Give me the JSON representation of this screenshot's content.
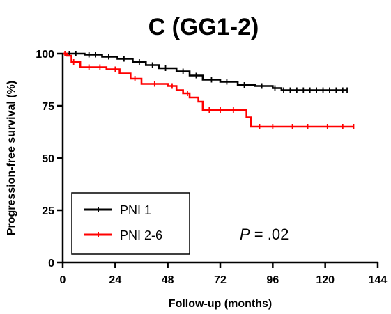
{
  "chart_data": {
    "type": "line",
    "subtype": "kaplan-meier",
    "title": "C (GG1-2)",
    "xlabel": "Follow-up (months)",
    "ylabel": "Progression-free survival (%)",
    "xlim": [
      0,
      144
    ],
    "ylim": [
      0,
      100
    ],
    "x_ticks": [
      0,
      24,
      48,
      72,
      96,
      120,
      144
    ],
    "y_ticks": [
      0,
      25,
      50,
      75,
      100
    ],
    "x_tick_labels": [
      "0",
      "24",
      "48",
      "72",
      "96",
      "120",
      "144"
    ],
    "y_tick_labels": [
      "0",
      "25",
      "50",
      "75",
      "100"
    ],
    "grid": false,
    "legend_position": "bottom-left",
    "annotation": {
      "italic": "P",
      "rest": " = .02"
    },
    "series": [
      {
        "name": "PNI 1",
        "color": "#000000",
        "steps": [
          [
            0,
            100
          ],
          [
            10,
            99.5
          ],
          [
            18,
            98.5
          ],
          [
            25,
            97.5
          ],
          [
            32,
            96
          ],
          [
            38,
            94.5
          ],
          [
            44,
            93
          ],
          [
            52,
            91.5
          ],
          [
            58,
            89.5
          ],
          [
            64,
            87.5
          ],
          [
            72,
            86.5
          ],
          [
            80,
            85
          ],
          [
            88,
            84.5
          ],
          [
            96,
            83.5
          ],
          [
            100,
            82.5
          ],
          [
            130,
            82.5
          ]
        ],
        "censor_x": [
          3,
          6,
          12,
          15,
          21,
          28,
          35,
          41,
          47,
          55,
          61,
          68,
          75,
          83,
          91,
          97,
          101,
          104,
          107,
          110,
          113,
          116,
          119,
          122,
          125,
          128,
          130
        ]
      },
      {
        "name": "PNI 2-6",
        "color": "#ff0000",
        "steps": [
          [
            0,
            100
          ],
          [
            2,
            99
          ],
          [
            4,
            96
          ],
          [
            8,
            93.5
          ],
          [
            20,
            92.5
          ],
          [
            26,
            90.5
          ],
          [
            31,
            88
          ],
          [
            36,
            85.5
          ],
          [
            48,
            84.5
          ],
          [
            52,
            82.5
          ],
          [
            55,
            81
          ],
          [
            58,
            79
          ],
          [
            62,
            77
          ],
          [
            64,
            73
          ],
          [
            84,
            69.5
          ],
          [
            86,
            65
          ],
          [
            133,
            65
          ]
        ],
        "censor_x": [
          1,
          5,
          12,
          17,
          24,
          33,
          42,
          50,
          57,
          67,
          72,
          78,
          90,
          96,
          105,
          112,
          121,
          128,
          133
        ]
      }
    ]
  }
}
